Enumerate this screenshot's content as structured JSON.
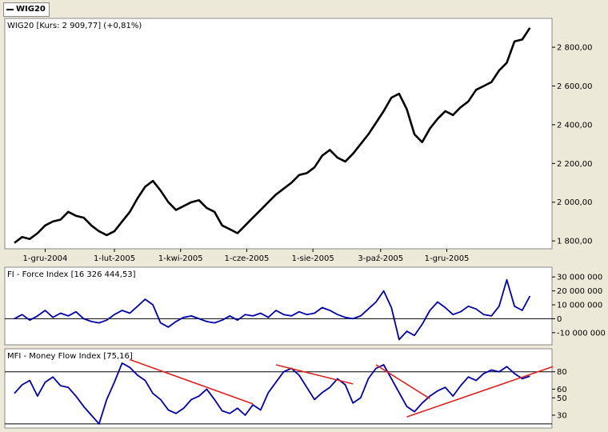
{
  "legend": {
    "label": "WIG20"
  },
  "panels": {
    "price": {
      "title": "WIG20 [Kurs: 2 909,77] (+0,81%)"
    },
    "fi": {
      "title": "FI - Force Index [16 326 444,53]"
    },
    "mfi": {
      "title": "MFI - Money Flow Index [75,16]"
    }
  },
  "colors": {
    "background": "#ece9d8",
    "panel": "#ffffff",
    "price_line": "#000000",
    "indicator_line": "#0000aa",
    "trendline": "#dd2222"
  },
  "chart_data": [
    {
      "type": "line",
      "title": "WIG20 [Kurs: 2 909,77] (+0,81%)",
      "series": [
        {
          "name": "WIG20"
        }
      ],
      "ylim": [
        1780,
        2920
      ],
      "xlim": [
        0,
        68
      ],
      "x_tick_labels": [
        {
          "label": "1-gru-2004",
          "x": 4
        },
        {
          "label": "1-lut-2005",
          "x": 13
        },
        {
          "label": "1-kwi-2005",
          "x": 21.6
        },
        {
          "label": "1-cze-2005",
          "x": 30.2
        },
        {
          "label": "1-sie-2005",
          "x": 38.8
        },
        {
          "label": "3-paź-2005",
          "x": 47.6
        },
        {
          "label": "1-gru-2005",
          "x": 56.2
        }
      ],
      "y_tick_labels": [
        {
          "label": "1 800,00",
          "y": 1800
        },
        {
          "label": "2 000,00",
          "y": 2000
        },
        {
          "label": "2 200,00",
          "y": 2200
        },
        {
          "label": "2 400,00",
          "y": 2400
        },
        {
          "label": "2 600,00",
          "y": 2600
        },
        {
          "label": "2 800,00",
          "y": 2800
        }
      ],
      "x": [
        0,
        1,
        2,
        3,
        4,
        5,
        6,
        7,
        8,
        9,
        10,
        11,
        12,
        13,
        14,
        15,
        16,
        17,
        18,
        19,
        20,
        21,
        22,
        23,
        24,
        25,
        26,
        27,
        28,
        29,
        30,
        31,
        32,
        33,
        34,
        35,
        36,
        37,
        38,
        39,
        40,
        41,
        42,
        43,
        44,
        45,
        46,
        47,
        48,
        49,
        50,
        51,
        52,
        53,
        54,
        55,
        56,
        57,
        58,
        59,
        60,
        61,
        62,
        63,
        64,
        65,
        66,
        67
      ],
      "values": [
        1790,
        1820,
        1810,
        1840,
        1880,
        1900,
        1910,
        1950,
        1930,
        1920,
        1880,
        1850,
        1830,
        1850,
        1900,
        1950,
        2020,
        2080,
        2110,
        2060,
        2000,
        1960,
        1980,
        2000,
        2010,
        1970,
        1950,
        1880,
        1860,
        1840,
        1880,
        1920,
        1960,
        2000,
        2040,
        2070,
        2100,
        2140,
        2150,
        2180,
        2240,
        2270,
        2230,
        2210,
        2250,
        2300,
        2350,
        2410,
        2470,
        2540,
        2560,
        2480,
        2350,
        2310,
        2380,
        2430,
        2470,
        2450,
        2490,
        2520,
        2580,
        2600,
        2620,
        2680,
        2720,
        2830,
        2840,
        2900
      ]
    },
    {
      "type": "line",
      "title": "FI - Force Index [16 326 444,53]",
      "series": [
        {
          "name": "FI - Force Index"
        }
      ],
      "ylim": [
        -17000000,
        33000000
      ],
      "y_tick_labels": [
        {
          "label": "30 000 000",
          "y": 30000000
        },
        {
          "label": "20 000 000",
          "y": 20000000
        },
        {
          "label": "10 000 000",
          "y": 10000000
        },
        {
          "label": "0",
          "y": 0
        },
        {
          "label": "-10 000 000",
          "y": -10000000
        }
      ],
      "x": [
        0,
        1,
        2,
        3,
        4,
        5,
        6,
        7,
        8,
        9,
        10,
        11,
        12,
        13,
        14,
        15,
        16,
        17,
        18,
        19,
        20,
        21,
        22,
        23,
        24,
        25,
        26,
        27,
        28,
        29,
        30,
        31,
        32,
        33,
        34,
        35,
        36,
        37,
        38,
        39,
        40,
        41,
        42,
        43,
        44,
        45,
        46,
        47,
        48,
        49,
        50,
        51,
        52,
        53,
        54,
        55,
        56,
        57,
        58,
        59,
        60,
        61,
        62,
        63,
        64,
        65,
        66,
        67
      ],
      "values": [
        0,
        3000000,
        -1000000,
        2000000,
        6000000,
        1000000,
        4000000,
        2000000,
        5000000,
        0,
        -2000000,
        -3000000,
        -1000000,
        3000000,
        6000000,
        4000000,
        9000000,
        14000000,
        10000000,
        -3000000,
        -6000000,
        -2000000,
        1000000,
        2000000,
        0,
        -2000000,
        -3000000,
        -1000000,
        2000000,
        -1000000,
        3000000,
        2000000,
        4000000,
        1000000,
        6000000,
        3000000,
        2000000,
        5000000,
        3000000,
        4000000,
        8000000,
        6000000,
        3000000,
        1000000,
        0,
        2000000,
        7000000,
        12000000,
        20000000,
        8000000,
        -15000000,
        -9000000,
        -12000000,
        -4000000,
        6000000,
        12000000,
        8000000,
        3000000,
        5000000,
        9000000,
        7000000,
        3000000,
        2000000,
        9000000,
        28000000,
        9000000,
        6000000,
        16326445
      ]
    },
    {
      "type": "line",
      "title": "MFI - Money Flow Index [75,16]",
      "series": [
        {
          "name": "MFI - Money Flow Index"
        }
      ],
      "ylim": [
        18,
        100
      ],
      "y_tick_labels": [
        {
          "label": "80",
          "y": 80
        },
        {
          "label": "60",
          "y": 60
        },
        {
          "label": "50",
          "y": 50
        },
        {
          "label": "30",
          "y": 30
        }
      ],
      "reference_lines": [
        80,
        20
      ],
      "x": [
        0,
        1,
        2,
        3,
        4,
        5,
        6,
        7,
        8,
        9,
        10,
        11,
        12,
        13,
        14,
        15,
        16,
        17,
        18,
        19,
        20,
        21,
        22,
        23,
        24,
        25,
        26,
        27,
        28,
        29,
        30,
        31,
        32,
        33,
        34,
        35,
        36,
        37,
        38,
        39,
        40,
        41,
        42,
        43,
        44,
        45,
        46,
        47,
        48,
        49,
        50,
        51,
        52,
        53,
        54,
        55,
        56,
        57,
        58,
        59,
        60,
        61,
        62,
        63,
        64,
        65,
        66,
        67
      ],
      "values": [
        55,
        65,
        70,
        52,
        68,
        74,
        64,
        62,
        52,
        40,
        30,
        20,
        48,
        68,
        90,
        85,
        76,
        70,
        55,
        48,
        36,
        32,
        38,
        48,
        52,
        60,
        48,
        35,
        32,
        38,
        30,
        42,
        36,
        56,
        68,
        80,
        84,
        76,
        62,
        48,
        56,
        62,
        72,
        65,
        44,
        50,
        72,
        84,
        88,
        72,
        56,
        40,
        34,
        44,
        52,
        58,
        62,
        52,
        64,
        74,
        70,
        78,
        82,
        80,
        86,
        78,
        72,
        75
      ]
    }
  ],
  "trendlines": [
    {
      "panel": "mfi",
      "from": {
        "x": 15,
        "y": 94
      },
      "to": {
        "x": 31,
        "y": 43
      }
    },
    {
      "panel": "mfi",
      "from": {
        "x": 34,
        "y": 88
      },
      "to": {
        "x": 44,
        "y": 66
      }
    },
    {
      "panel": "mfi",
      "from": {
        "x": 47,
        "y": 88
      },
      "to": {
        "x": 54,
        "y": 49
      }
    },
    {
      "panel": "mfi",
      "from": {
        "x": 51,
        "y": 28
      },
      "to": {
        "x": 70,
        "y": 86
      }
    }
  ]
}
